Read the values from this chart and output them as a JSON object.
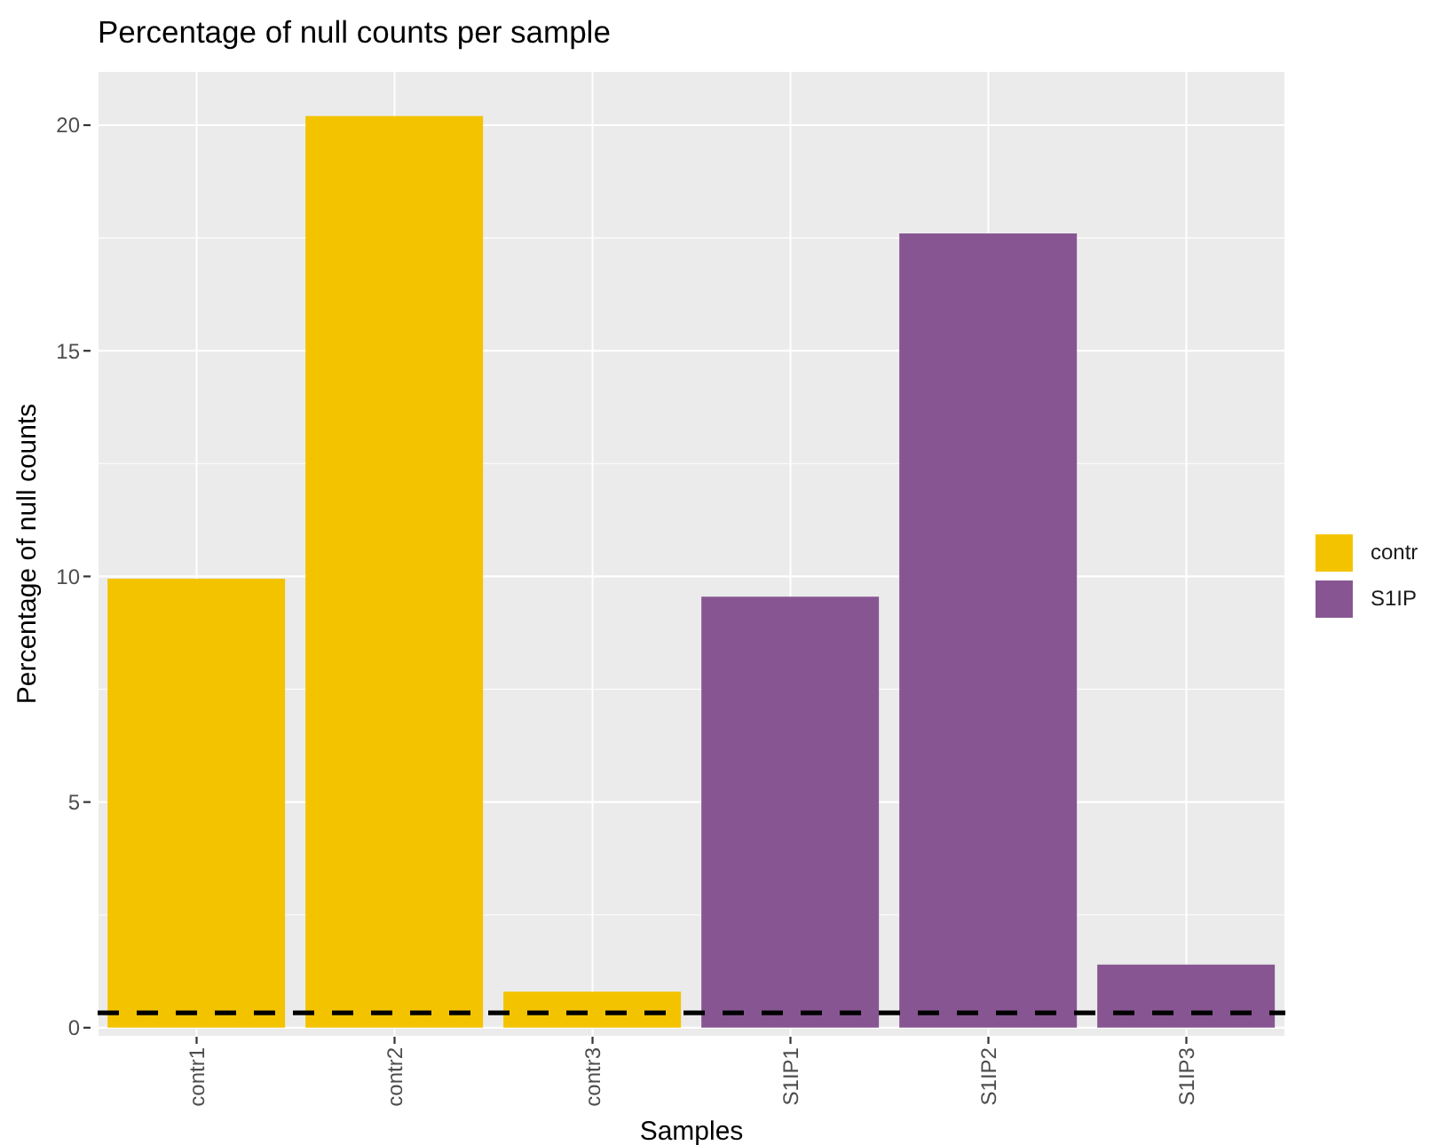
{
  "chart_data": {
    "type": "bar",
    "title": "Percentage of null counts per sample",
    "xlabel": "Samples",
    "ylabel": "Percentage of null counts",
    "categories": [
      "contr1",
      "contr2",
      "contr3",
      "S1IP1",
      "S1IP2",
      "S1IP3"
    ],
    "series": [
      {
        "name": "contr",
        "color": "#f3c300",
        "values": [
          9.95,
          20.2,
          0.8,
          null,
          null,
          null
        ]
      },
      {
        "name": "S1IP",
        "color": "#875692",
        "values": [
          null,
          null,
          null,
          9.55,
          17.6,
          1.4
        ]
      }
    ],
    "stacked": true,
    "ylim": [
      -0.2,
      21.2
    ],
    "yticks": [
      0,
      {
        "value": 2.5,
        "label": null
      },
      5,
      {
        "value": 7.5,
        "label": null
      },
      10,
      {
        "value": 12.5,
        "label": null
      },
      15,
      {
        "value": 17.5,
        "label": null
      },
      20
    ],
    "ref_lines": [
      {
        "axis": "y",
        "value": 0.33,
        "color": "#000000",
        "line_style": "dashed"
      }
    ],
    "grid": true,
    "legend": "right"
  }
}
